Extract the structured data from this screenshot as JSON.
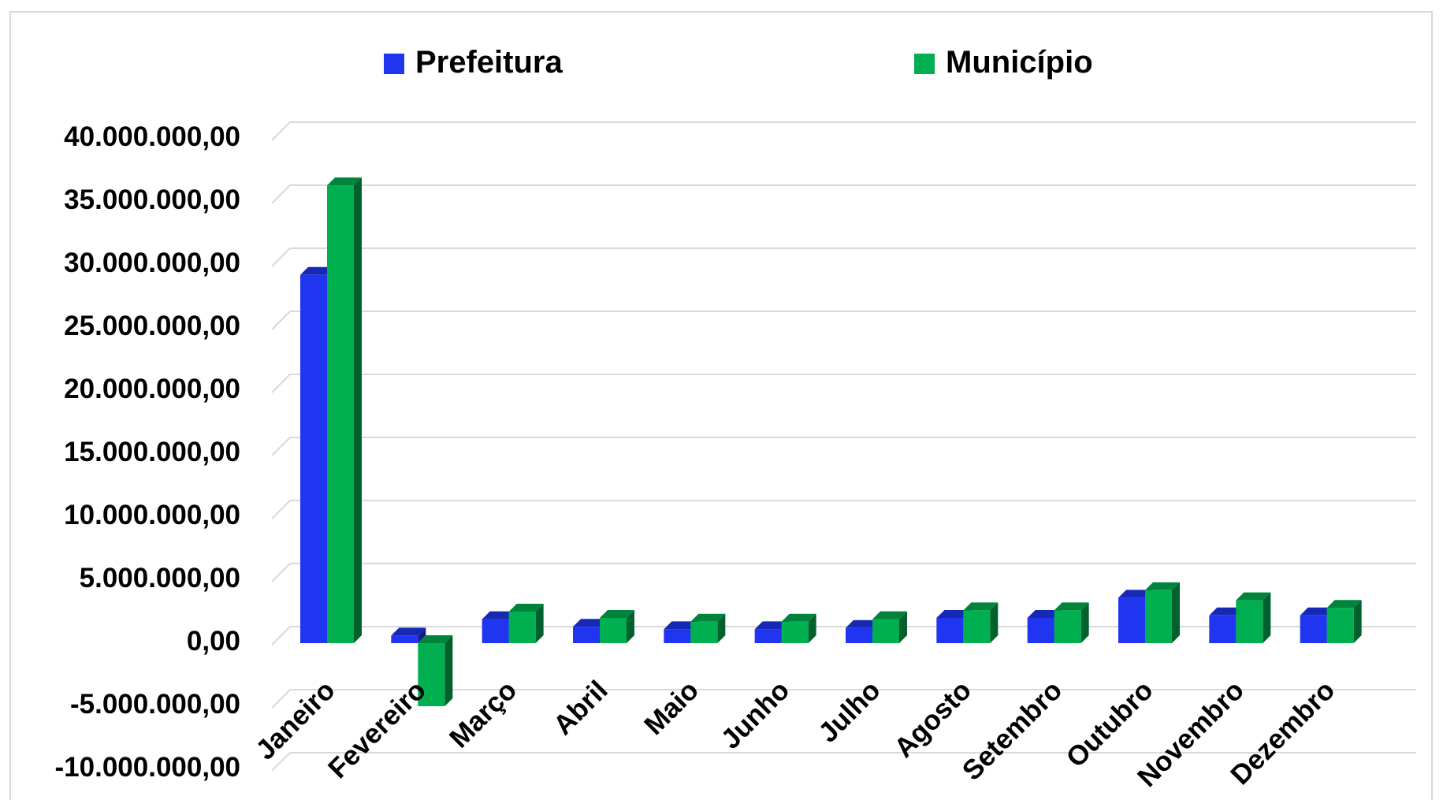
{
  "chart_data": {
    "type": "bar",
    "title": "",
    "xlabel": "",
    "ylabel": "",
    "categories": [
      "Janeiro",
      "Fevereiro",
      "Março",
      "Abril",
      "Maio",
      "Junho",
      "Julho",
      "Agosto",
      "Setembro",
      "Outubro",
      "Novembro",
      "Dezembro"
    ],
    "series": [
      {
        "name": "Prefeitura",
        "color": "#1f35f0",
        "values": [
          29200000,
          600000,
          1900000,
          1300000,
          1100000,
          1100000,
          1200000,
          2000000,
          2000000,
          3600000,
          2200000,
          2200000
        ]
      },
      {
        "name": "Município",
        "color": "#00b050",
        "values": [
          36300000,
          -5000000,
          2500000,
          2000000,
          1700000,
          1700000,
          1900000,
          2600000,
          2600000,
          4200000,
          3400000,
          2800000
        ]
      }
    ],
    "ylim": [
      -10000000,
      40000000
    ],
    "yticks": [
      40000000,
      35000000,
      30000000,
      25000000,
      20000000,
      15000000,
      10000000,
      5000000,
      0,
      -5000000,
      -10000000
    ],
    "ytick_labels": [
      "40.000.000,00",
      "35.000.000,00",
      "30.000.000,00",
      "25.000.000,00",
      "20.000.000,00",
      "15.000.000,00",
      "10.000.000,00",
      "5.000.000,00",
      "0,00",
      "-5.000.000,00",
      "-10.000.000,00"
    ],
    "grid": true,
    "legend_position": "top",
    "style": "3d-column"
  }
}
